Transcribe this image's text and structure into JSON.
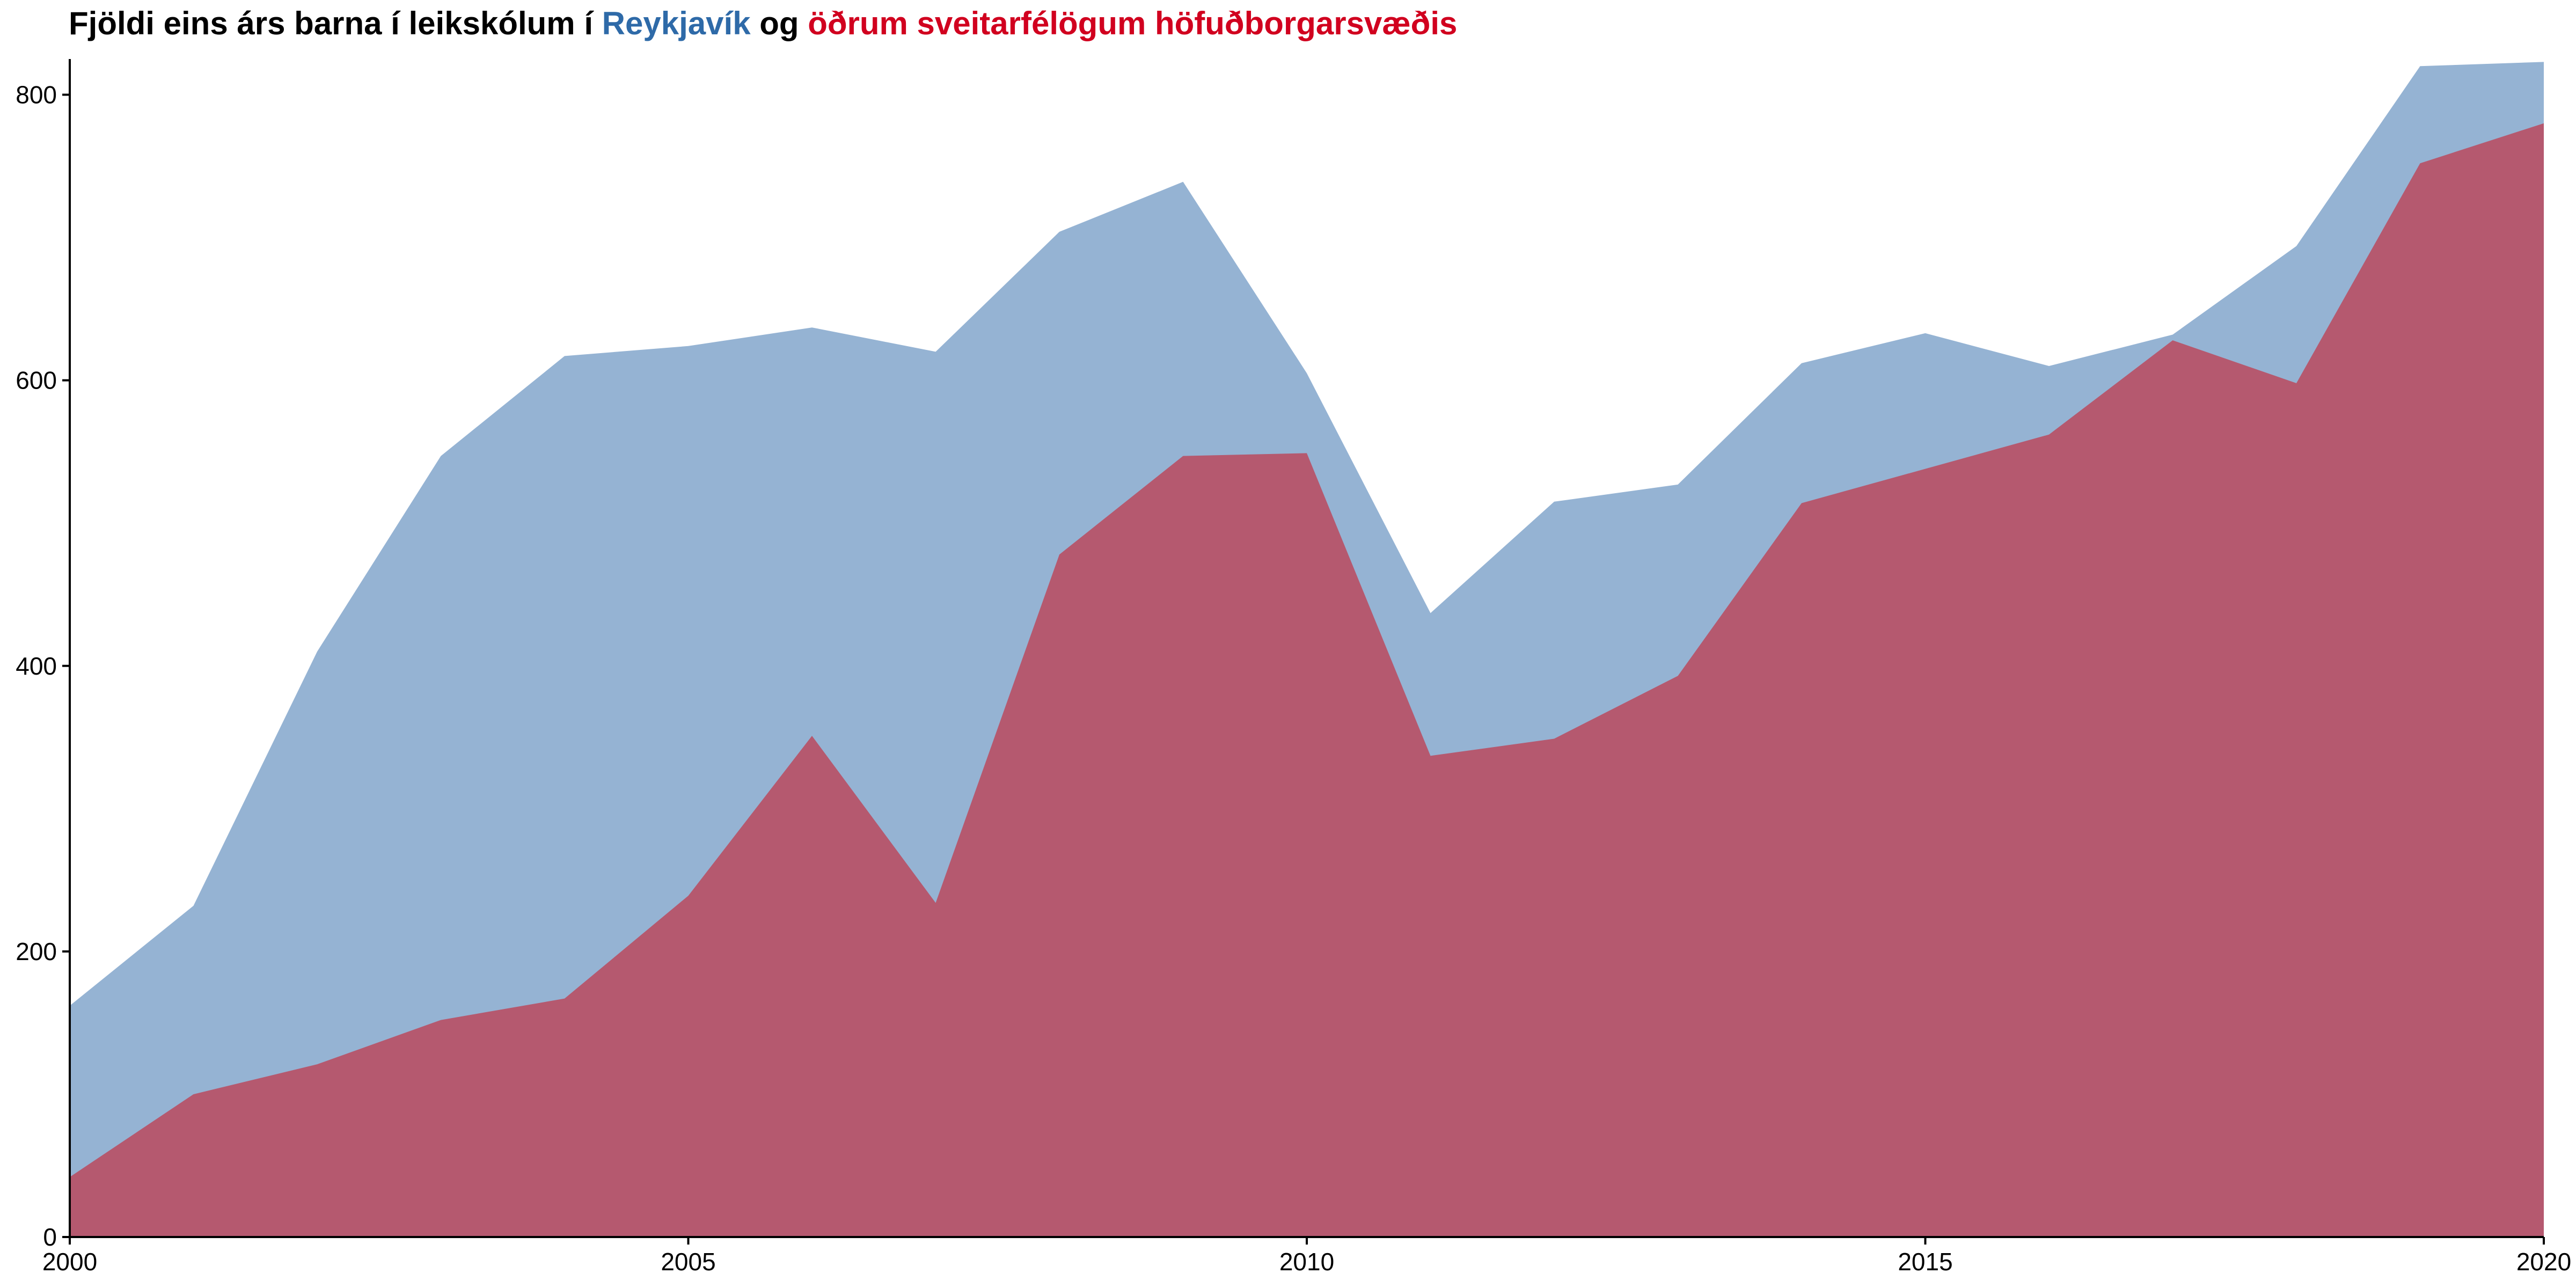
{
  "colors": {
    "reykjavik": "#2e6aa8",
    "others": "#d1001f",
    "reykjavik_fill": "#95b3d3",
    "others_fill": "#b5596f",
    "title": "#000000",
    "axis": "#000000"
  },
  "chart_data": {
    "type": "area",
    "title_parts": [
      {
        "text": "Fjöldi eins árs barna í leikskólum í ",
        "color": "#000000"
      },
      {
        "text": "Reykjavík",
        "color": "#2e6aa8"
      },
      {
        "text": " og ",
        "color": "#000000"
      },
      {
        "text": "öðrum sveitarfélögum höfuðborgarsvæðis",
        "color": "#d1001f"
      }
    ],
    "xlabel": "",
    "ylabel": "",
    "x": [
      2000,
      2001,
      2002,
      2003,
      2004,
      2005,
      2006,
      2007,
      2008,
      2009,
      2010,
      2011,
      2012,
      2013,
      2014,
      2015,
      2016,
      2017,
      2018,
      2019,
      2020
    ],
    "xlim": [
      2000,
      2020
    ],
    "ylim": [
      0,
      825
    ],
    "x_ticks": [
      2000,
      2005,
      2010,
      2015,
      2020
    ],
    "y_ticks": [
      0,
      200,
      400,
      600,
      800
    ],
    "grid": false,
    "legend": "none",
    "series": [
      {
        "name": "Reykjavík",
        "color": "#95b3d3",
        "values": [
          162,
          232,
          410,
          547,
          617,
          624,
          637,
          620,
          704,
          739,
          605,
          437,
          515,
          527,
          612,
          633,
          610,
          632,
          694,
          820,
          823
        ]
      },
      {
        "name": "öðrum sveitarfélögum höfuðborgarsvæðis",
        "color": "#b5596f",
        "values": [
          42,
          100,
          121,
          152,
          167,
          239,
          351,
          234,
          478,
          547,
          549,
          337,
          349,
          393,
          514,
          538,
          562,
          628,
          598,
          752,
          780
        ]
      }
    ]
  }
}
